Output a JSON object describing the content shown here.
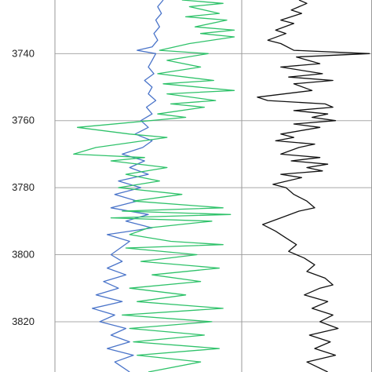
{
  "chart_data": {
    "type": "line",
    "orientation": "vertical-depth",
    "y_axis": {
      "ticks": [
        3740,
        3760,
        3780,
        3800,
        3820
      ],
      "range": [
        3724,
        3835
      ],
      "inverted": true,
      "grid": true
    },
    "colors": {
      "blue_curve": "#4a74c9",
      "green_curve": "#2fc26a",
      "black_curve": "#111111",
      "grid": "#a8a8a8",
      "frame": "#9a9a9a"
    },
    "tracks": [
      {
        "x_range": [
          0,
          100
        ],
        "series": [
          {
            "color_key": "blue_curve",
            "points": [
              [
                58,
                3724
              ],
              [
                55,
                3726
              ],
              [
                57,
                3728
              ],
              [
                54,
                3730
              ],
              [
                56,
                3732
              ],
              [
                53,
                3734
              ],
              [
                55,
                3736
              ],
              [
                52,
                3738
              ],
              [
                44,
                3739
              ],
              [
                54,
                3740
              ],
              [
                52,
                3742
              ],
              [
                50,
                3744
              ],
              [
                53,
                3746
              ],
              [
                48,
                3748
              ],
              [
                52,
                3750
              ],
              [
                50,
                3752
              ],
              [
                54,
                3754
              ],
              [
                49,
                3756
              ],
              [
                52,
                3758
              ],
              [
                46,
                3760
              ],
              [
                50,
                3762
              ],
              [
                43,
                3764
              ],
              [
                52,
                3766
              ],
              [
                47,
                3768
              ],
              [
                36,
                3770
              ],
              [
                48,
                3772
              ],
              [
                40,
                3774
              ],
              [
                50,
                3776
              ],
              [
                34,
                3778
              ],
              [
                46,
                3780
              ],
              [
                32,
                3782
              ],
              [
                44,
                3784
              ],
              [
                30,
                3786
              ],
              [
                50,
                3788
              ],
              [
                38,
                3790
              ],
              [
                52,
                3792
              ],
              [
                28,
                3794
              ],
              [
                40,
                3796
              ],
              [
                35,
                3798
              ],
              [
                30,
                3800
              ],
              [
                36,
                3802
              ],
              [
                28,
                3804
              ],
              [
                38,
                3806
              ],
              [
                26,
                3808
              ],
              [
                34,
                3810
              ],
              [
                22,
                3812
              ],
              [
                36,
                3814
              ],
              [
                20,
                3816
              ],
              [
                32,
                3818
              ],
              [
                24,
                3820
              ],
              [
                38,
                3822
              ],
              [
                30,
                3824
              ],
              [
                40,
                3826
              ],
              [
                28,
                3828
              ],
              [
                42,
                3830
              ],
              [
                32,
                3832
              ],
              [
                40,
                3835
              ]
            ]
          },
          {
            "color_key": "green_curve",
            "points": [
              [
                68,
                3724
              ],
              [
                90,
                3725
              ],
              [
                72,
                3726
              ],
              [
                88,
                3728
              ],
              [
                70,
                3729
              ],
              [
                92,
                3730
              ],
              [
                75,
                3732
              ],
              [
                96,
                3733
              ],
              [
                78,
                3734
              ],
              [
                96,
                3735
              ],
              [
                72,
                3737
              ],
              [
                56,
                3739
              ],
              [
                82,
                3740
              ],
              [
                60,
                3742
              ],
              [
                78,
                3744
              ],
              [
                55,
                3746
              ],
              [
                85,
                3748
              ],
              [
                58,
                3749
              ],
              [
                96,
                3751
              ],
              [
                60,
                3752
              ],
              [
                86,
                3754
              ],
              [
                62,
                3755
              ],
              [
                80,
                3756
              ],
              [
                55,
                3758
              ],
              [
                70,
                3759
              ],
              [
                12,
                3762
              ],
              [
                40,
                3764
              ],
              [
                60,
                3765
              ],
              [
                22,
                3768
              ],
              [
                10,
                3770
              ],
              [
                48,
                3771
              ],
              [
                30,
                3772
              ],
              [
                60,
                3774
              ],
              [
                38,
                3776
              ],
              [
                56,
                3778
              ],
              [
                34,
                3780
              ],
              [
                68,
                3782
              ],
              [
                42,
                3784
              ],
              [
                90,
                3786
              ],
              [
                36,
                3787
              ],
              [
                94,
                3788
              ],
              [
                30,
                3789
              ],
              [
                84,
                3790
              ],
              [
                50,
                3792
              ],
              [
                40,
                3794
              ],
              [
                62,
                3796
              ],
              [
                90,
                3797
              ],
              [
                38,
                3798
              ],
              [
                76,
                3800
              ],
              [
                46,
                3802
              ],
              [
                88,
                3804
              ],
              [
                52,
                3806
              ],
              [
                78,
                3808
              ],
              [
                40,
                3810
              ],
              [
                70,
                3812
              ],
              [
                44,
                3814
              ],
              [
                90,
                3816
              ],
              [
                36,
                3818
              ],
              [
                84,
                3820
              ],
              [
                40,
                3822
              ],
              [
                80,
                3824
              ],
              [
                42,
                3826
              ],
              [
                88,
                3828
              ],
              [
                44,
                3830
              ],
              [
                78,
                3832
              ],
              [
                50,
                3835
              ]
            ]
          }
        ]
      },
      {
        "x_range": [
          0,
          100
        ],
        "series": [
          {
            "color_key": "black_curve",
            "points": [
              [
                44,
                3724
              ],
              [
                50,
                3725
              ],
              [
                38,
                3727
              ],
              [
                46,
                3728
              ],
              [
                30,
                3730
              ],
              [
                40,
                3731
              ],
              [
                26,
                3733
              ],
              [
                34,
                3734
              ],
              [
                20,
                3736
              ],
              [
                30,
                3737
              ],
              [
                40,
                3739
              ],
              [
                98,
                3740
              ],
              [
                42,
                3741
              ],
              [
                60,
                3743
              ],
              [
                30,
                3744
              ],
              [
                62,
                3746
              ],
              [
                36,
                3747
              ],
              [
                70,
                3748
              ],
              [
                40,
                3749
              ],
              [
                54,
                3751
              ],
              [
                12,
                3753
              ],
              [
                20,
                3754
              ],
              [
                64,
                3755
              ],
              [
                70,
                3756
              ],
              [
                40,
                3757
              ],
              [
                66,
                3758
              ],
              [
                54,
                3759
              ],
              [
                72,
                3760
              ],
              [
                40,
                3761
              ],
              [
                60,
                3762
              ],
              [
                30,
                3764
              ],
              [
                40,
                3765
              ],
              [
                26,
                3766
              ],
              [
                56,
                3767
              ],
              [
                44,
                3768
              ],
              [
                30,
                3770
              ],
              [
                60,
                3771
              ],
              [
                38,
                3772
              ],
              [
                66,
                3773
              ],
              [
                50,
                3774
              ],
              [
                62,
                3775
              ],
              [
                30,
                3776
              ],
              [
                46,
                3777
              ],
              [
                24,
                3779
              ],
              [
                34,
                3780
              ],
              [
                40,
                3782
              ],
              [
                50,
                3784
              ],
              [
                56,
                3786
              ],
              [
                44,
                3787
              ],
              [
                30,
                3789
              ],
              [
                16,
                3791
              ],
              [
                26,
                3793
              ],
              [
                34,
                3795
              ],
              [
                42,
                3797
              ],
              [
                36,
                3799
              ],
              [
                48,
                3801
              ],
              [
                56,
                3803
              ],
              [
                50,
                3805
              ],
              [
                64,
                3807
              ],
              [
                70,
                3809
              ],
              [
                60,
                3810
              ],
              [
                48,
                3812
              ],
              [
                66,
                3814
              ],
              [
                54,
                3816
              ],
              [
                70,
                3818
              ],
              [
                60,
                3820
              ],
              [
                74,
                3822
              ],
              [
                52,
                3824
              ],
              [
                68,
                3826
              ],
              [
                56,
                3828
              ],
              [
                72,
                3830
              ],
              [
                50,
                3832
              ],
              [
                66,
                3835
              ]
            ]
          }
        ]
      }
    ]
  }
}
